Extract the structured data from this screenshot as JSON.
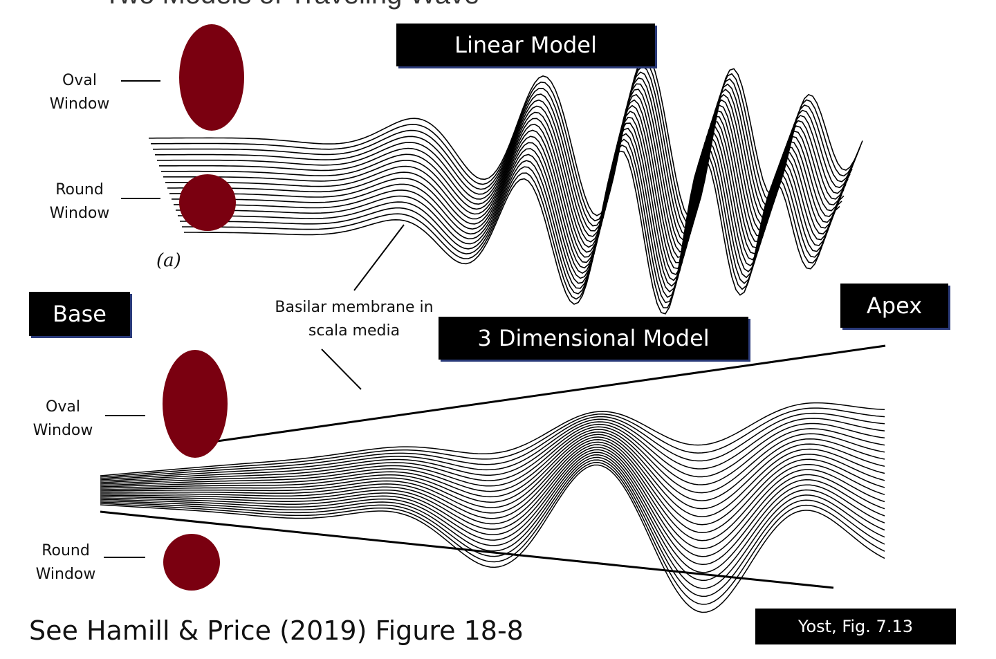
{
  "title": "Two Models of Traveling Wave",
  "labels": {
    "linear_model": "Linear Model",
    "three_d_model": "3 Dimensional Model",
    "base": "Base",
    "apex": "Apex",
    "oval_window": "Oval Window",
    "round_window": "Round Window",
    "basilar_membrane": "Basilar membrane in scala media",
    "panel_a": "(a)"
  },
  "citation": "See Hamill & Price (2019) Figure 18-8",
  "source": "Yost, Fig. 7.13",
  "colors": {
    "window": "#7a0010",
    "box": "#000000",
    "box_shadow": "#2a3a7a"
  }
}
